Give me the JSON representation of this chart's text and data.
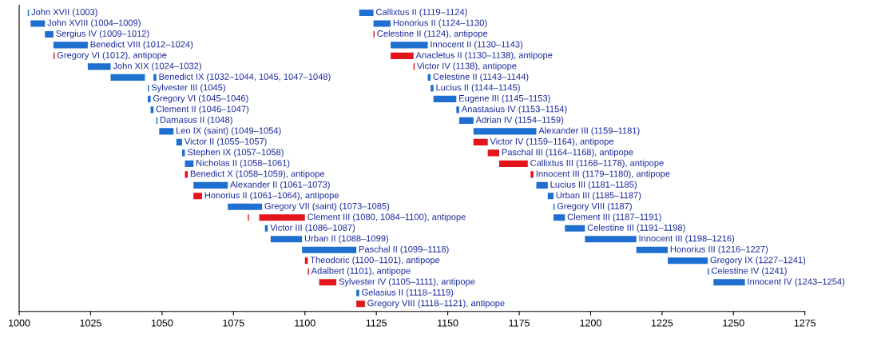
{
  "chart_data": {
    "type": "bar",
    "orientation": "horizontal",
    "categories": [
      null,
      null,
      null,
      null,
      null,
      null,
      null,
      null,
      null,
      null,
      null,
      null,
      null,
      null,
      null,
      null,
      null,
      null,
      null,
      null,
      null,
      null,
      null,
      null,
      null,
      null,
      null,
      null
    ],
    "xlim": [
      1000,
      1275
    ],
    "xticks": [
      1000,
      1025,
      1050,
      1075,
      1100,
      1125,
      1150,
      1175,
      1200,
      1225,
      1250,
      1275
    ],
    "tick_labels": "x",
    "grid": false,
    "legend": false,
    "series": [
      {
        "base": [
          1003,
          1004,
          1009,
          1012,
          1012,
          1024,
          1032,
          1045,
          1045,
          1046,
          1048,
          1049,
          1055,
          1057,
          1058,
          1058,
          1061,
          1061,
          1073,
          1084,
          1086,
          1088,
          1099,
          1100,
          1101,
          1105,
          1118,
          1118
        ],
        "values": [
          0.4,
          5,
          3,
          12,
          0.4,
          8,
          12,
          0.4,
          1,
          1,
          0.4,
          5,
          2,
          1,
          3,
          1,
          12,
          3,
          12,
          16,
          1,
          11,
          19,
          1,
          0.4,
          6,
          1,
          3
        ],
        "colors": [
          "#1f6fd0",
          "#1f6fd0",
          "#1f6fd0",
          "#1f6fd0",
          "#e3141b",
          "#1f6fd0",
          "#1f6fd0",
          "#1f6fd0",
          "#1f6fd0",
          "#1f6fd0",
          "#1f6fd0",
          "#1f6fd0",
          "#1f6fd0",
          "#1f6fd0",
          "#1f6fd0",
          "#e3141b",
          "#1f6fd0",
          "#e3141b",
          "#1f6fd0",
          "#e3141b",
          "#1f6fd0",
          "#1f6fd0",
          "#1f6fd0",
          "#e3141b",
          "#e3141b",
          "#e3141b",
          "#1f6fd0",
          "#e3141b"
        ],
        "value_labels": [
          "John XVII (1003)",
          "John XVIII (1004–1009)",
          "Sergius IV (1009–1012)",
          "Benedict VIII (1012–1024)",
          "Gregory VI (1012), antipope",
          "John XIX (1024–1032)",
          null,
          "Sylvester III (1045)",
          "Gregory VI (1045–1046)",
          "Clement II (1046–1047)",
          "Damasus II (1048)",
          "Leo IX (saint) (1049–1054)",
          "Victor II (1055–1057)",
          "Stephen IX (1057–1058)",
          "Nicholas II (1058–1061)",
          "Benedict X (1058–1059), antipope",
          "Alexander II (1061–1073)",
          "Honorius II (1061–1064), antipope",
          "Gregory VII (saint) (1073–1085)",
          "Clement III (1080, 1084–1100), antipope",
          "Victor III (1086–1087)",
          "Urban II (1088–1099)",
          "Paschal II (1099–1118)",
          "Theodoric (1100–1101), antipope",
          "Adalbert (1101), antipope",
          "Sylvester IV (1105–1111), antipope",
          "Gelasius II (1118–1119)",
          "Gregory VIII (1118–1121), antipope"
        ]
      },
      {
        "base": [
          null,
          null,
          null,
          null,
          null,
          null,
          1047,
          null,
          null,
          null,
          null,
          null,
          null,
          null,
          null,
          null,
          null,
          null,
          null,
          1080,
          null,
          null,
          null,
          null,
          null,
          null,
          null,
          null
        ],
        "values": [
          null,
          null,
          null,
          null,
          null,
          null,
          1,
          null,
          null,
          null,
          null,
          null,
          null,
          null,
          null,
          null,
          null,
          null,
          null,
          0.4,
          null,
          null,
          null,
          null,
          null,
          null,
          null,
          null
        ],
        "colors": [
          "#1f6fd0",
          "#1f6fd0",
          "#1f6fd0",
          "#1f6fd0",
          "#1f6fd0",
          "#1f6fd0",
          "#1f6fd0",
          "#1f6fd0",
          "#1f6fd0",
          "#1f6fd0",
          "#1f6fd0",
          "#1f6fd0",
          "#1f6fd0",
          "#1f6fd0",
          "#1f6fd0",
          "#1f6fd0",
          "#1f6fd0",
          "#1f6fd0",
          "#1f6fd0",
          "#e3141b",
          "#1f6fd0",
          "#1f6fd0",
          "#1f6fd0",
          "#1f6fd0",
          "#1f6fd0",
          "#1f6fd0",
          "#1f6fd0",
          "#1f6fd0"
        ],
        "value_labels": [
          null,
          null,
          null,
          null,
          null,
          null,
          "Benedict IX (1032–1044, 1045, 1047–1048)",
          null,
          null,
          null,
          null,
          null,
          null,
          null,
          null,
          null,
          null,
          null,
          null,
          null,
          null,
          null,
          null,
          null,
          null,
          null,
          null,
          null
        ]
      },
      {
        "base": [
          1119,
          1124,
          1124,
          1130,
          1130,
          1138,
          1143,
          1144,
          1145,
          1153,
          1154,
          1159,
          1159,
          1164,
          1168,
          1179,
          1181,
          1185,
          1187,
          1187,
          1191,
          1198,
          1216,
          1227,
          1241,
          1243,
          null,
          null
        ],
        "values": [
          5,
          6,
          0.4,
          13,
          8,
          0.4,
          1,
          1,
          8,
          1,
          5,
          22,
          5,
          4,
          10,
          1,
          4,
          2,
          0.4,
          4,
          7,
          18,
          11,
          14,
          0.4,
          11,
          null,
          null
        ],
        "colors": [
          "#1f6fd0",
          "#1f6fd0",
          "#e3141b",
          "#1f6fd0",
          "#e3141b",
          "#e3141b",
          "#1f6fd0",
          "#1f6fd0",
          "#1f6fd0",
          "#1f6fd0",
          "#1f6fd0",
          "#1f6fd0",
          "#e3141b",
          "#e3141b",
          "#e3141b",
          "#e3141b",
          "#1f6fd0",
          "#1f6fd0",
          "#1f6fd0",
          "#1f6fd0",
          "#1f6fd0",
          "#1f6fd0",
          "#1f6fd0",
          "#1f6fd0",
          "#1f6fd0",
          "#1f6fd0",
          "#1f6fd0",
          "#1f6fd0"
        ],
        "value_labels": [
          "Callixtus II (1119–1124)",
          "Honorius II (1124–1130)",
          "Celestine II (1124), antipope",
          "Innocent II (1130–1143)",
          "Anacletus II (1130–1138), antipope",
          "Victor IV (1138), antipope",
          "Celestine II (1143–1144)",
          "Lucius II (1144–1145)",
          "Eugene III (1145–1153)",
          "Anastasius IV (1153–1154)",
          "Adrian IV (1154–1159)",
          "Alexander III (1159–1181)",
          "Victor IV (1159–1164), antipope",
          "Paschal III (1164–1168), antipope",
          "Callixtus III (1168–1178), antipope",
          "Innocent III (1179–1180), antipope",
          "Lucius III (1181–1185)",
          "Urban III (1185–1187)",
          "Gregory VIII (1187)",
          "Clement III (1187–1191)",
          "Celestine III (1191–1198)",
          "Innocent III (1198–1216)",
          "Honorius III (1216–1227)",
          "Gregory IX (1227–1241)",
          "Celestine IV (1241)",
          "Innocent IV (1243–1254)",
          null,
          null
        ]
      }
    ]
  }
}
